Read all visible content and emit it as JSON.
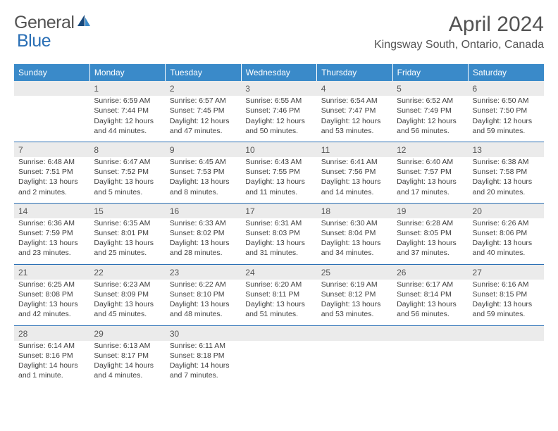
{
  "logo": {
    "word1": "General",
    "word2": "Blue"
  },
  "title": "April 2024",
  "location": "Kingsway South, Ontario, Canada",
  "header_bg": "#3a8ac9",
  "daynum_bg": "#ebebeb",
  "rule_color": "#2a6fb5",
  "days": [
    "Sunday",
    "Monday",
    "Tuesday",
    "Wednesday",
    "Thursday",
    "Friday",
    "Saturday"
  ],
  "weeks": [
    {
      "nums": [
        "",
        "1",
        "2",
        "3",
        "4",
        "5",
        "6"
      ],
      "cells": [
        {
          "sr": "",
          "ss": "",
          "dl": ""
        },
        {
          "sr": "Sunrise: 6:59 AM",
          "ss": "Sunset: 7:44 PM",
          "dl": "Daylight: 12 hours and 44 minutes."
        },
        {
          "sr": "Sunrise: 6:57 AM",
          "ss": "Sunset: 7:45 PM",
          "dl": "Daylight: 12 hours and 47 minutes."
        },
        {
          "sr": "Sunrise: 6:55 AM",
          "ss": "Sunset: 7:46 PM",
          "dl": "Daylight: 12 hours and 50 minutes."
        },
        {
          "sr": "Sunrise: 6:54 AM",
          "ss": "Sunset: 7:47 PM",
          "dl": "Daylight: 12 hours and 53 minutes."
        },
        {
          "sr": "Sunrise: 6:52 AM",
          "ss": "Sunset: 7:49 PM",
          "dl": "Daylight: 12 hours and 56 minutes."
        },
        {
          "sr": "Sunrise: 6:50 AM",
          "ss": "Sunset: 7:50 PM",
          "dl": "Daylight: 12 hours and 59 minutes."
        }
      ]
    },
    {
      "nums": [
        "7",
        "8",
        "9",
        "10",
        "11",
        "12",
        "13"
      ],
      "cells": [
        {
          "sr": "Sunrise: 6:48 AM",
          "ss": "Sunset: 7:51 PM",
          "dl": "Daylight: 13 hours and 2 minutes."
        },
        {
          "sr": "Sunrise: 6:47 AM",
          "ss": "Sunset: 7:52 PM",
          "dl": "Daylight: 13 hours and 5 minutes."
        },
        {
          "sr": "Sunrise: 6:45 AM",
          "ss": "Sunset: 7:53 PM",
          "dl": "Daylight: 13 hours and 8 minutes."
        },
        {
          "sr": "Sunrise: 6:43 AM",
          "ss": "Sunset: 7:55 PM",
          "dl": "Daylight: 13 hours and 11 minutes."
        },
        {
          "sr": "Sunrise: 6:41 AM",
          "ss": "Sunset: 7:56 PM",
          "dl": "Daylight: 13 hours and 14 minutes."
        },
        {
          "sr": "Sunrise: 6:40 AM",
          "ss": "Sunset: 7:57 PM",
          "dl": "Daylight: 13 hours and 17 minutes."
        },
        {
          "sr": "Sunrise: 6:38 AM",
          "ss": "Sunset: 7:58 PM",
          "dl": "Daylight: 13 hours and 20 minutes."
        }
      ]
    },
    {
      "nums": [
        "14",
        "15",
        "16",
        "17",
        "18",
        "19",
        "20"
      ],
      "cells": [
        {
          "sr": "Sunrise: 6:36 AM",
          "ss": "Sunset: 7:59 PM",
          "dl": "Daylight: 13 hours and 23 minutes."
        },
        {
          "sr": "Sunrise: 6:35 AM",
          "ss": "Sunset: 8:01 PM",
          "dl": "Daylight: 13 hours and 25 minutes."
        },
        {
          "sr": "Sunrise: 6:33 AM",
          "ss": "Sunset: 8:02 PM",
          "dl": "Daylight: 13 hours and 28 minutes."
        },
        {
          "sr": "Sunrise: 6:31 AM",
          "ss": "Sunset: 8:03 PM",
          "dl": "Daylight: 13 hours and 31 minutes."
        },
        {
          "sr": "Sunrise: 6:30 AM",
          "ss": "Sunset: 8:04 PM",
          "dl": "Daylight: 13 hours and 34 minutes."
        },
        {
          "sr": "Sunrise: 6:28 AM",
          "ss": "Sunset: 8:05 PM",
          "dl": "Daylight: 13 hours and 37 minutes."
        },
        {
          "sr": "Sunrise: 6:26 AM",
          "ss": "Sunset: 8:06 PM",
          "dl": "Daylight: 13 hours and 40 minutes."
        }
      ]
    },
    {
      "nums": [
        "21",
        "22",
        "23",
        "24",
        "25",
        "26",
        "27"
      ],
      "cells": [
        {
          "sr": "Sunrise: 6:25 AM",
          "ss": "Sunset: 8:08 PM",
          "dl": "Daylight: 13 hours and 42 minutes."
        },
        {
          "sr": "Sunrise: 6:23 AM",
          "ss": "Sunset: 8:09 PM",
          "dl": "Daylight: 13 hours and 45 minutes."
        },
        {
          "sr": "Sunrise: 6:22 AM",
          "ss": "Sunset: 8:10 PM",
          "dl": "Daylight: 13 hours and 48 minutes."
        },
        {
          "sr": "Sunrise: 6:20 AM",
          "ss": "Sunset: 8:11 PM",
          "dl": "Daylight: 13 hours and 51 minutes."
        },
        {
          "sr": "Sunrise: 6:19 AM",
          "ss": "Sunset: 8:12 PM",
          "dl": "Daylight: 13 hours and 53 minutes."
        },
        {
          "sr": "Sunrise: 6:17 AM",
          "ss": "Sunset: 8:14 PM",
          "dl": "Daylight: 13 hours and 56 minutes."
        },
        {
          "sr": "Sunrise: 6:16 AM",
          "ss": "Sunset: 8:15 PM",
          "dl": "Daylight: 13 hours and 59 minutes."
        }
      ]
    },
    {
      "nums": [
        "28",
        "29",
        "30",
        "",
        "",
        "",
        ""
      ],
      "cells": [
        {
          "sr": "Sunrise: 6:14 AM",
          "ss": "Sunset: 8:16 PM",
          "dl": "Daylight: 14 hours and 1 minute."
        },
        {
          "sr": "Sunrise: 6:13 AM",
          "ss": "Sunset: 8:17 PM",
          "dl": "Daylight: 14 hours and 4 minutes."
        },
        {
          "sr": "Sunrise: 6:11 AM",
          "ss": "Sunset: 8:18 PM",
          "dl": "Daylight: 14 hours and 7 minutes."
        },
        {
          "sr": "",
          "ss": "",
          "dl": ""
        },
        {
          "sr": "",
          "ss": "",
          "dl": ""
        },
        {
          "sr": "",
          "ss": "",
          "dl": ""
        },
        {
          "sr": "",
          "ss": "",
          "dl": ""
        }
      ]
    }
  ]
}
